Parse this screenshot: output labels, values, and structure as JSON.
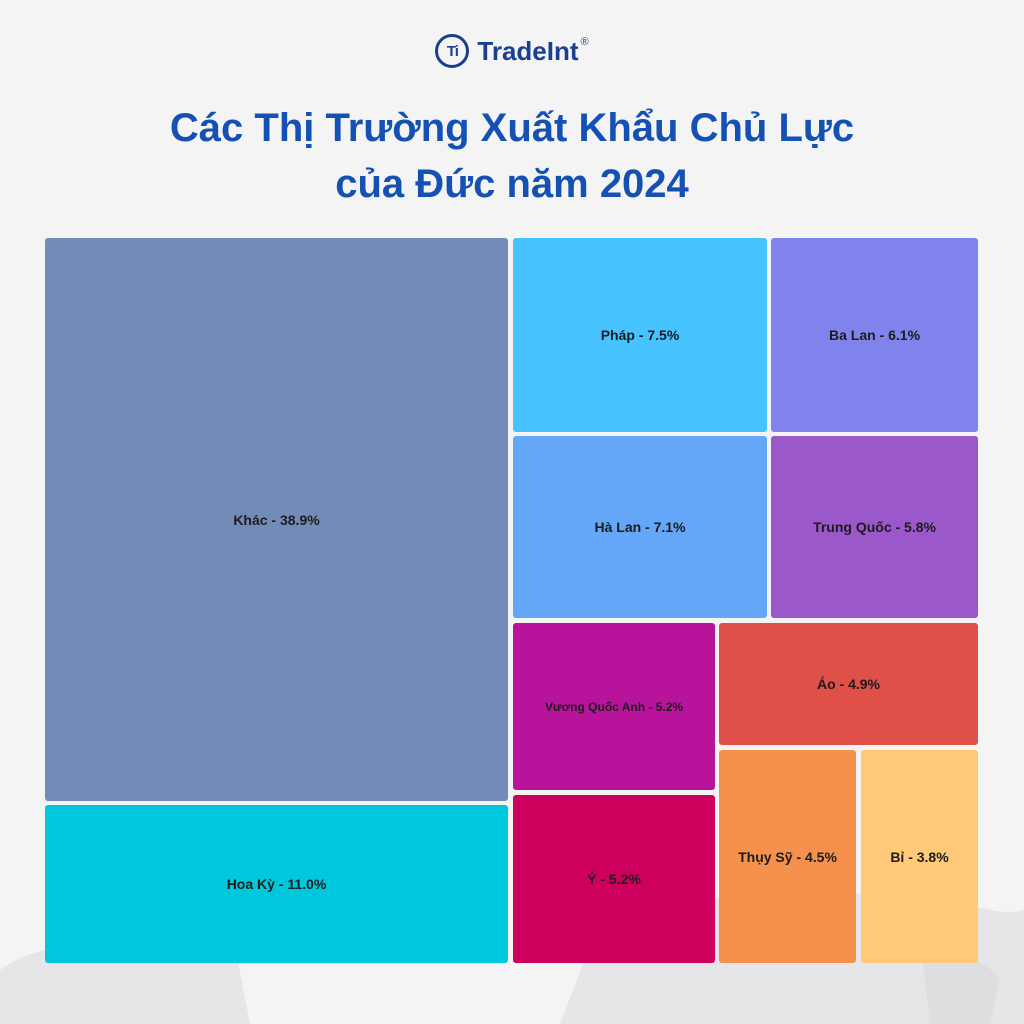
{
  "brand": {
    "mark": "Ti",
    "name": "TradeInt",
    "reg": "®"
  },
  "chart_data": {
    "type": "treemap",
    "title_line1": "Các Thị Trường Xuất Khẩu Chủ Lực",
    "title_line2": "của Đức năm 2024",
    "items": [
      {
        "name": "Khác",
        "value": 38.9,
        "label": "Khác - 38.9%",
        "color": "#738bb7"
      },
      {
        "name": "Hoa Kỳ",
        "value": 11.0,
        "label": "Hoa Kỳ - 11.0%",
        "color": "#00c8dc"
      },
      {
        "name": "Pháp",
        "value": 7.5,
        "label": "Pháp - 7.5%",
        "color": "#47c3ff"
      },
      {
        "name": "Hà Lan",
        "value": 7.1,
        "label": "Hà Lan - 7.1%",
        "color": "#64a6f7"
      },
      {
        "name": "Ba Lan",
        "value": 6.1,
        "label": "Ba Lan - 6.1%",
        "color": "#8083eb"
      },
      {
        "name": "Trung Quốc",
        "value": 5.8,
        "label": "Trung Quốc - 5.8%",
        "color": "#9a58ca"
      },
      {
        "name": "Vương Quốc Anh",
        "value": 5.2,
        "label": "Vương Quốc Anh - 5.2%",
        "color": "#b7149b"
      },
      {
        "name": "Ý",
        "value": 5.2,
        "label": "Ý - 5.2%",
        "color": "#ce005d"
      },
      {
        "name": "Áo",
        "value": 4.9,
        "label": "Áo - 4.9%",
        "color": "#de5048"
      },
      {
        "name": "Thụy Sỹ",
        "value": 4.5,
        "label": "Thụy Sỹ - 4.5%",
        "color": "#f6914d"
      },
      {
        "name": "Bỉ",
        "value": 3.8,
        "label": "Bỉ - 3.8%",
        "color": "#ffc978"
      }
    ]
  }
}
